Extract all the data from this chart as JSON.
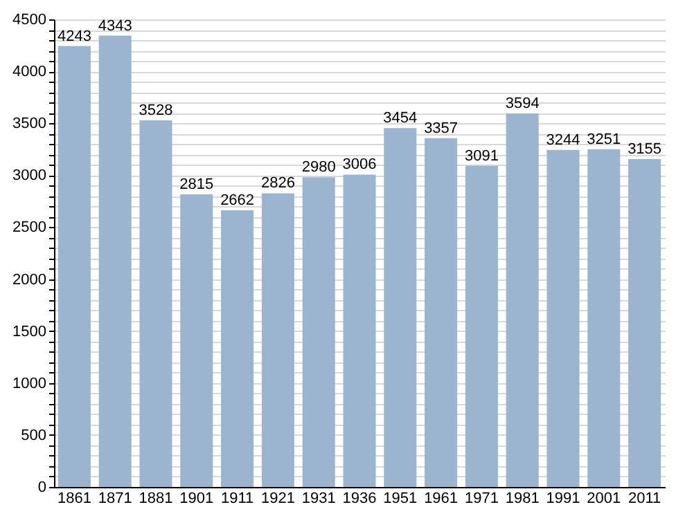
{
  "chart_data": {
    "type": "bar",
    "categories": [
      "1861",
      "1871",
      "1881",
      "1901",
      "1911",
      "1921",
      "1931",
      "1936",
      "1951",
      "1961",
      "1971",
      "1981",
      "1991",
      "2001",
      "2011"
    ],
    "values": [
      4243,
      4343,
      3528,
      2815,
      2662,
      2826,
      2980,
      3006,
      3454,
      3357,
      3091,
      3594,
      3244,
      3251,
      3155
    ],
    "color": "#9bb4d0",
    "data_labels": true,
    "grid": "y",
    "ylim": [
      0,
      4500
    ],
    "yticks": [
      0,
      {
        "value": 100,
        "label": null
      },
      {
        "value": 200,
        "label": null
      },
      {
        "value": 300,
        "label": null
      },
      {
        "value": 400,
        "label": null
      },
      500,
      {
        "value": 600,
        "label": null
      },
      {
        "value": 700,
        "label": null
      },
      {
        "value": 800,
        "label": null
      },
      {
        "value": 900,
        "label": null
      },
      1000,
      {
        "value": 1100,
        "label": null
      },
      {
        "value": 1200,
        "label": null
      },
      {
        "value": 1300,
        "label": null
      },
      {
        "value": 1400,
        "label": null
      },
      1500,
      {
        "value": 1600,
        "label": null
      },
      {
        "value": 1700,
        "label": null
      },
      {
        "value": 1800,
        "label": null
      },
      {
        "value": 1900,
        "label": null
      },
      2000,
      {
        "value": 2100,
        "label": null
      },
      {
        "value": 2200,
        "label": null
      },
      {
        "value": 2300,
        "label": null
      },
      {
        "value": 2400,
        "label": null
      },
      2500,
      {
        "value": 2600,
        "label": null
      },
      {
        "value": 2700,
        "label": null
      },
      {
        "value": 2800,
        "label": null
      },
      {
        "value": 2900,
        "label": null
      },
      3000,
      {
        "value": 3100,
        "label": null
      },
      {
        "value": 3200,
        "label": null
      },
      {
        "value": 3300,
        "label": null
      },
      {
        "value": 3400,
        "label": null
      },
      3500,
      {
        "value": 3600,
        "label": null
      },
      {
        "value": 3700,
        "label": null
      },
      {
        "value": 3800,
        "label": null
      },
      {
        "value": 3900,
        "label": null
      },
      4000,
      {
        "value": 4100,
        "label": null
      },
      {
        "value": 4200,
        "label": null
      },
      {
        "value": 4300,
        "label": null
      },
      {
        "value": 4400,
        "label": null
      },
      4500
    ]
  }
}
